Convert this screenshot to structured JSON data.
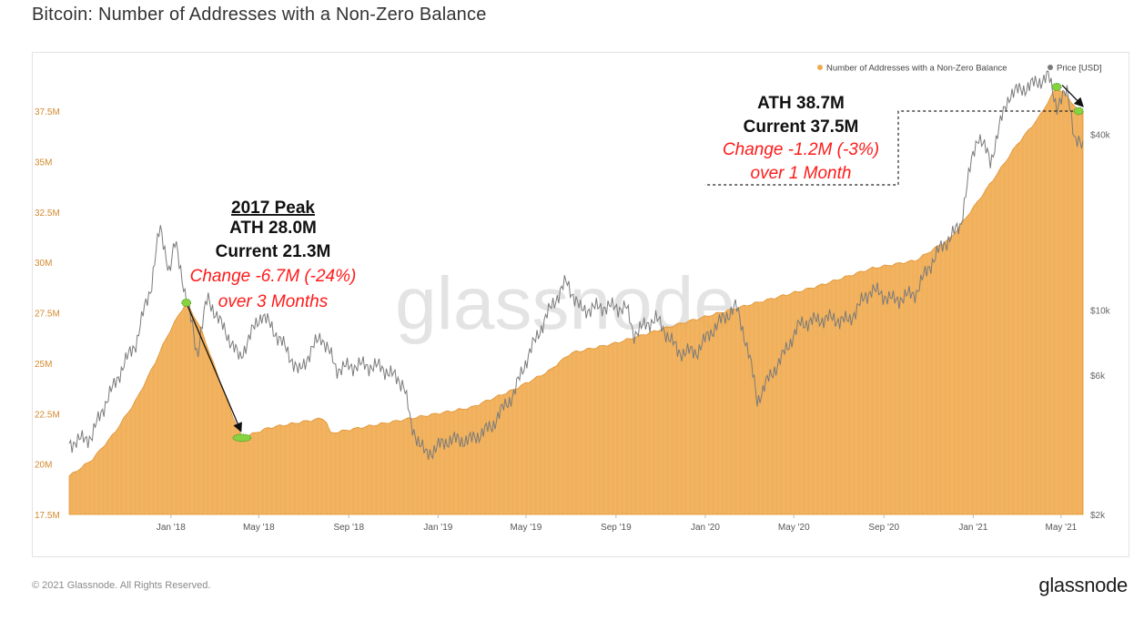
{
  "title": "Bitcoin: Number of Addresses with a Non-Zero Balance",
  "footer": {
    "copyright": "© 2021 Glassnode. All Rights Reserved.",
    "logo": "glassnode"
  },
  "watermark": "glassnode",
  "colors": {
    "addresses": "#f0a94c",
    "price": "#7a7a7a",
    "change": "#ff1a1a",
    "frame": "#e3e3e3"
  },
  "chart_data": {
    "type": "area",
    "title": "Bitcoin: Number of Addresses with a Non-Zero Balance",
    "x_ticks": [
      "Jan '18",
      "May '18",
      "Sep '18",
      "Jan '19",
      "May '19",
      "Sep '19",
      "Jan '20",
      "May '20",
      "Sep '20",
      "Jan '21",
      "May '21"
    ],
    "y_left": {
      "ticks": [
        "17.5M",
        "20M",
        "22.5M",
        "25M",
        "27.5M",
        "30M",
        "32.5M",
        "35M",
        "37.5M"
      ],
      "range": [
        17.5,
        38.9
      ],
      "unit": "M"
    },
    "y_right": {
      "ticks": [
        "$2k",
        "$6k",
        "$10k",
        "$40k"
      ],
      "scale": "log",
      "range": [
        2000,
        60000
      ]
    },
    "legend": {
      "position": "top-right",
      "items": [
        {
          "name": "Number of Addresses with a Non-Zero Balance",
          "color": "#f0a94c"
        },
        {
          "name": "Price [USD]",
          "color": "#7a7a7a"
        }
      ]
    },
    "series": [
      {
        "name": "Number of Addresses with a Non-Zero Balance",
        "axis": "left",
        "points": [
          [
            "2017-08-15",
            19.4
          ],
          [
            "2017-09-15",
            20.2
          ],
          [
            "2017-10-15",
            21.5
          ],
          [
            "2017-11-15",
            23.2
          ],
          [
            "2017-12-10",
            25.0
          ],
          [
            "2017-12-25",
            26.2
          ],
          [
            "2018-01-10",
            27.3
          ],
          [
            "2018-01-22",
            28.0
          ],
          [
            "2018-02-10",
            26.8
          ],
          [
            "2018-03-05",
            24.5
          ],
          [
            "2018-03-25",
            22.5
          ],
          [
            "2018-04-08",
            21.3
          ],
          [
            "2018-05-15",
            21.8
          ],
          [
            "2018-07-01",
            22.1
          ],
          [
            "2018-08-01",
            22.3
          ],
          [
            "2018-08-03",
            21.5
          ],
          [
            "2018-10-01",
            21.9
          ],
          [
            "2018-12-15",
            22.4
          ],
          [
            "2019-02-15",
            22.8
          ],
          [
            "2019-04-15",
            23.7
          ],
          [
            "2019-06-01",
            24.6
          ],
          [
            "2019-07-01",
            25.5
          ],
          [
            "2019-09-01",
            26.0
          ],
          [
            "2019-12-01",
            27.0
          ],
          [
            "2020-03-01",
            27.9
          ],
          [
            "2020-06-01",
            28.8
          ],
          [
            "2020-08-15",
            29.7
          ],
          [
            "2020-10-15",
            30.1
          ],
          [
            "2020-12-01",
            31.2
          ],
          [
            "2021-01-01",
            32.7
          ],
          [
            "2021-02-01",
            34.3
          ],
          [
            "2021-03-01",
            35.8
          ],
          [
            "2021-04-01",
            37.2
          ],
          [
            "2021-04-25",
            38.7
          ],
          [
            "2021-05-10",
            38.2
          ],
          [
            "2021-05-25",
            37.5
          ]
        ]
      },
      {
        "name": "Price [USD]",
        "axis": "right",
        "points": [
          [
            "2017-08-15",
            3500
          ],
          [
            "2017-09-15",
            3700
          ],
          [
            "2017-10-15",
            5500
          ],
          [
            "2017-11-15",
            7800
          ],
          [
            "2017-12-05",
            12000
          ],
          [
            "2017-12-17",
            19000
          ],
          [
            "2017-12-30",
            13500
          ],
          [
            "2018-01-07",
            17000
          ],
          [
            "2018-01-20",
            11500
          ],
          [
            "2018-02-06",
            7000
          ],
          [
            "2018-02-20",
            11000
          ],
          [
            "2018-03-10",
            9000
          ],
          [
            "2018-04-05",
            6800
          ],
          [
            "2018-05-05",
            9700
          ],
          [
            "2018-06-25",
            6100
          ],
          [
            "2018-07-25",
            8200
          ],
          [
            "2018-08-15",
            6300
          ],
          [
            "2018-09-15",
            6500
          ],
          [
            "2018-10-15",
            6400
          ],
          [
            "2018-11-15",
            5600
          ],
          [
            "2018-11-25",
            4000
          ],
          [
            "2018-12-15",
            3200
          ],
          [
            "2019-01-15",
            3600
          ],
          [
            "2019-02-15",
            3600
          ],
          [
            "2019-03-15",
            4000
          ],
          [
            "2019-04-15",
            5200
          ],
          [
            "2019-05-15",
            8000
          ],
          [
            "2019-06-25",
            12500
          ],
          [
            "2019-07-15",
            10000
          ],
          [
            "2019-08-15",
            10300
          ],
          [
            "2019-09-15",
            10200
          ],
          [
            "2019-09-25",
            8300
          ],
          [
            "2019-10-25",
            9400
          ],
          [
            "2019-11-25",
            7200
          ],
          [
            "2019-12-20",
            7200
          ],
          [
            "2020-01-15",
            8800
          ],
          [
            "2020-02-12",
            10300
          ],
          [
            "2020-03-12",
            4900
          ],
          [
            "2020-04-15",
            6900
          ],
          [
            "2020-05-10",
            9000
          ],
          [
            "2020-06-15",
            9400
          ],
          [
            "2020-07-15",
            9200
          ],
          [
            "2020-08-15",
            11800
          ],
          [
            "2020-09-15",
            10800
          ],
          [
            "2020-10-15",
            11500
          ],
          [
            "2020-11-15",
            16000
          ],
          [
            "2020-12-15",
            19500
          ],
          [
            "2021-01-08",
            40000
          ],
          [
            "2021-01-25",
            32000
          ],
          [
            "2021-02-20",
            55000
          ],
          [
            "2021-03-15",
            58000
          ],
          [
            "2021-04-14",
            63000
          ],
          [
            "2021-04-25",
            50000
          ],
          [
            "2021-05-10",
            56000
          ],
          [
            "2021-05-20",
            38000
          ],
          [
            "2021-05-31",
            36000
          ]
        ]
      }
    ],
    "annotations": [
      {
        "label": "2017 Peak",
        "ath": "ATH 28.0M",
        "current": "Current 21.3M",
        "change": "Change -6.7M (-24%)",
        "period": "over 3 Months"
      },
      {
        "ath": "ATH 38.7M",
        "current": "Current 37.5M",
        "change": "Change -1.2M (-3%)",
        "period": "over 1 Month"
      }
    ]
  }
}
